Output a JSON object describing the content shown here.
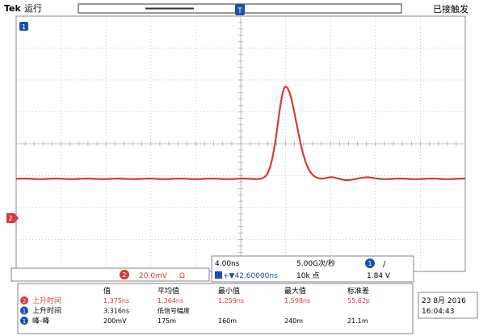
{
  "header": {
    "brand": "Tek",
    "run_status": "运行",
    "trigger_status": "已接触发",
    "trigger_marker": "T"
  },
  "markers": {
    "ch1_top": "1",
    "ch2_left": "2"
  },
  "channel_info": {
    "channel": "2",
    "scale": "20.0mV",
    "coupling": "Ω"
  },
  "timebase": {
    "time_div": "4.00ns",
    "sample_rate": "5.00G次/秒",
    "trigger_channel": "1",
    "trigger_slope": "/",
    "position": "+▼42.60000ns",
    "record_length": "10k 点",
    "trigger_level": "1.84 V"
  },
  "measurements": {
    "headers": [
      "值",
      "平均值",
      "最小值",
      "最大值",
      "标准差"
    ],
    "rows": [
      {
        "channel": "2",
        "name": "上升时间",
        "values": [
          "1.375ns",
          "1.364ns",
          "1.259ns",
          "1.598ns",
          "55.62p"
        ],
        "highlight": true
      },
      {
        "channel": "1",
        "name": "上升时间",
        "values": [
          "3.316ns",
          "低信号幅度",
          "",
          "",
          ""
        ],
        "highlight": false
      },
      {
        "channel": "1",
        "name": "峰-峰",
        "values": [
          "200mV",
          "175m",
          "160m",
          "240m",
          "21.1m"
        ],
        "highlight": false
      }
    ]
  },
  "datetime": {
    "date": "23 8月 2016",
    "time": "16:04:43"
  },
  "colors": {
    "trace": "#d63a3a",
    "ch1": "#1c4fa8",
    "ch2": "#d63a3a",
    "grid": "#b9b9b9"
  },
  "waveform": {
    "baseline_div": -1.1,
    "peak_div": 1.8,
    "peak_x_div": 6.0,
    "rise_start_x_div": 5.6,
    "fall_end_x_div": 6.6
  }
}
